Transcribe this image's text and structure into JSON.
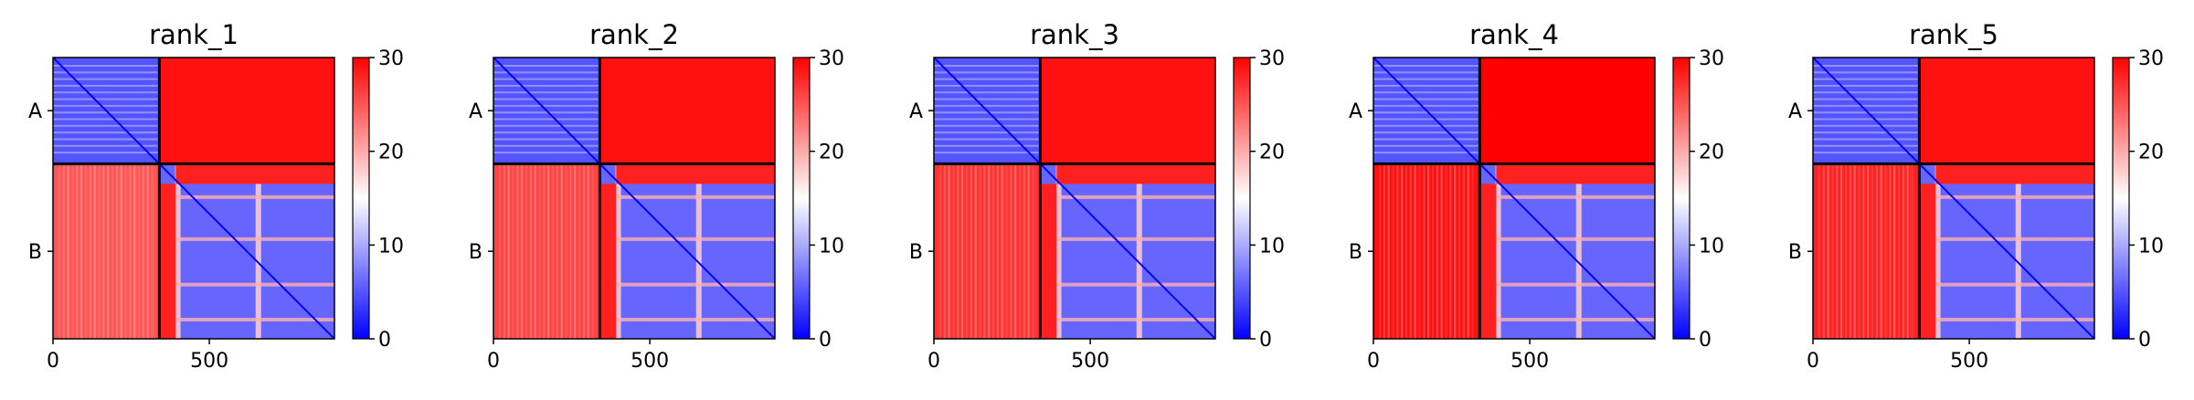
{
  "chart_data": [
    {
      "type": "heatmap",
      "title": "rank_1",
      "xlabel": "",
      "ylabel": "",
      "chains": [
        {
          "label": "A",
          "range": [
            0,
            340
          ]
        },
        {
          "label": "B",
          "range": [
            340,
            900
          ]
        }
      ],
      "xlim": [
        0,
        900
      ],
      "xticks": [
        0,
        500
      ],
      "chain_boundary": 340,
      "colorbar": {
        "min": 0,
        "max": 30,
        "ticks": [
          0,
          10,
          20,
          30
        ],
        "colors": [
          "#0000ff",
          "#ffffff",
          "#ff0000"
        ]
      },
      "blocks": {
        "AA": 5,
        "AB": 29,
        "BA": 25,
        "BB": 6
      }
    },
    {
      "type": "heatmap",
      "title": "rank_2",
      "xlabel": "",
      "ylabel": "",
      "chains": [
        {
          "label": "A",
          "range": [
            0,
            340
          ]
        },
        {
          "label": "B",
          "range": [
            340,
            900
          ]
        }
      ],
      "xlim": [
        0,
        900
      ],
      "xticks": [
        0,
        500
      ],
      "chain_boundary": 340,
      "colorbar": {
        "min": 0,
        "max": 30,
        "ticks": [
          0,
          10,
          20,
          30
        ],
        "colors": [
          "#0000ff",
          "#ffffff",
          "#ff0000"
        ]
      },
      "blocks": {
        "AA": 5,
        "AB": 29,
        "BA": 26,
        "BB": 6
      }
    },
    {
      "type": "heatmap",
      "title": "rank_3",
      "xlabel": "",
      "ylabel": "",
      "chains": [
        {
          "label": "A",
          "range": [
            0,
            340
          ]
        },
        {
          "label": "B",
          "range": [
            340,
            900
          ]
        }
      ],
      "xlim": [
        0,
        900
      ],
      "xticks": [
        0,
        500
      ],
      "chain_boundary": 340,
      "colorbar": {
        "min": 0,
        "max": 30,
        "ticks": [
          0,
          10,
          20,
          30
        ],
        "colors": [
          "#0000ff",
          "#ffffff",
          "#ff0000"
        ]
      },
      "blocks": {
        "AA": 5,
        "AB": 29,
        "BA": 27,
        "BB": 6
      }
    },
    {
      "type": "heatmap",
      "title": "rank_4",
      "xlabel": "",
      "ylabel": "",
      "chains": [
        {
          "label": "A",
          "range": [
            0,
            340
          ]
        },
        {
          "label": "B",
          "range": [
            340,
            900
          ]
        }
      ],
      "xlim": [
        0,
        900
      ],
      "xticks": [
        0,
        500
      ],
      "chain_boundary": 340,
      "colorbar": {
        "min": 0,
        "max": 30,
        "ticks": [
          0,
          10,
          20,
          30
        ],
        "colors": [
          "#0000ff",
          "#ffffff",
          "#ff0000"
        ]
      },
      "blocks": {
        "AA": 5,
        "AB": 30,
        "BA": 29,
        "BB": 6
      }
    },
    {
      "type": "heatmap",
      "title": "rank_5",
      "xlabel": "",
      "ylabel": "",
      "chains": [
        {
          "label": "A",
          "range": [
            0,
            340
          ]
        },
        {
          "label": "B",
          "range": [
            340,
            900
          ]
        }
      ],
      "xlim": [
        0,
        900
      ],
      "xticks": [
        0,
        500
      ],
      "chain_boundary": 340,
      "colorbar": {
        "min": 0,
        "max": 30,
        "ticks": [
          0,
          10,
          20,
          30
        ],
        "colors": [
          "#0000ff",
          "#ffffff",
          "#ff0000"
        ]
      },
      "blocks": {
        "AA": 5,
        "AB": 29,
        "BA": 28,
        "BB": 6
      }
    }
  ]
}
